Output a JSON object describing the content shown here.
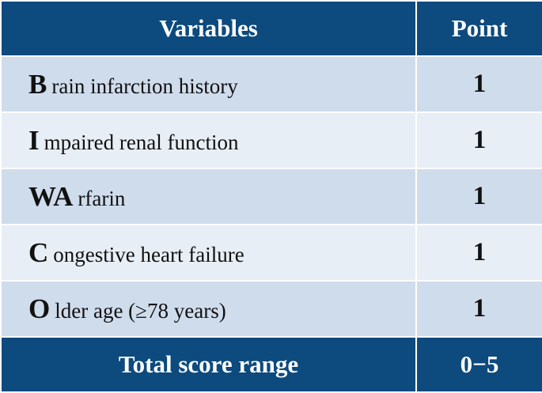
{
  "table": {
    "header": [
      "Variables",
      "Point"
    ],
    "rows": [
      {
        "initial": "B",
        "rest": "rain infarction history",
        "point": 1
      },
      {
        "initial": "I",
        "rest": "mpaired renal function",
        "point": 1
      },
      {
        "initial": "WA",
        "rest": "rfarin",
        "point": 1
      },
      {
        "initial": "C",
        "rest": "ongestive heart failure",
        "point": 1
      },
      {
        "initial": "O",
        "rest": "lder age (≥78 years)",
        "point": 1
      }
    ],
    "footer": [
      "Total score range",
      "0−5"
    ]
  }
}
